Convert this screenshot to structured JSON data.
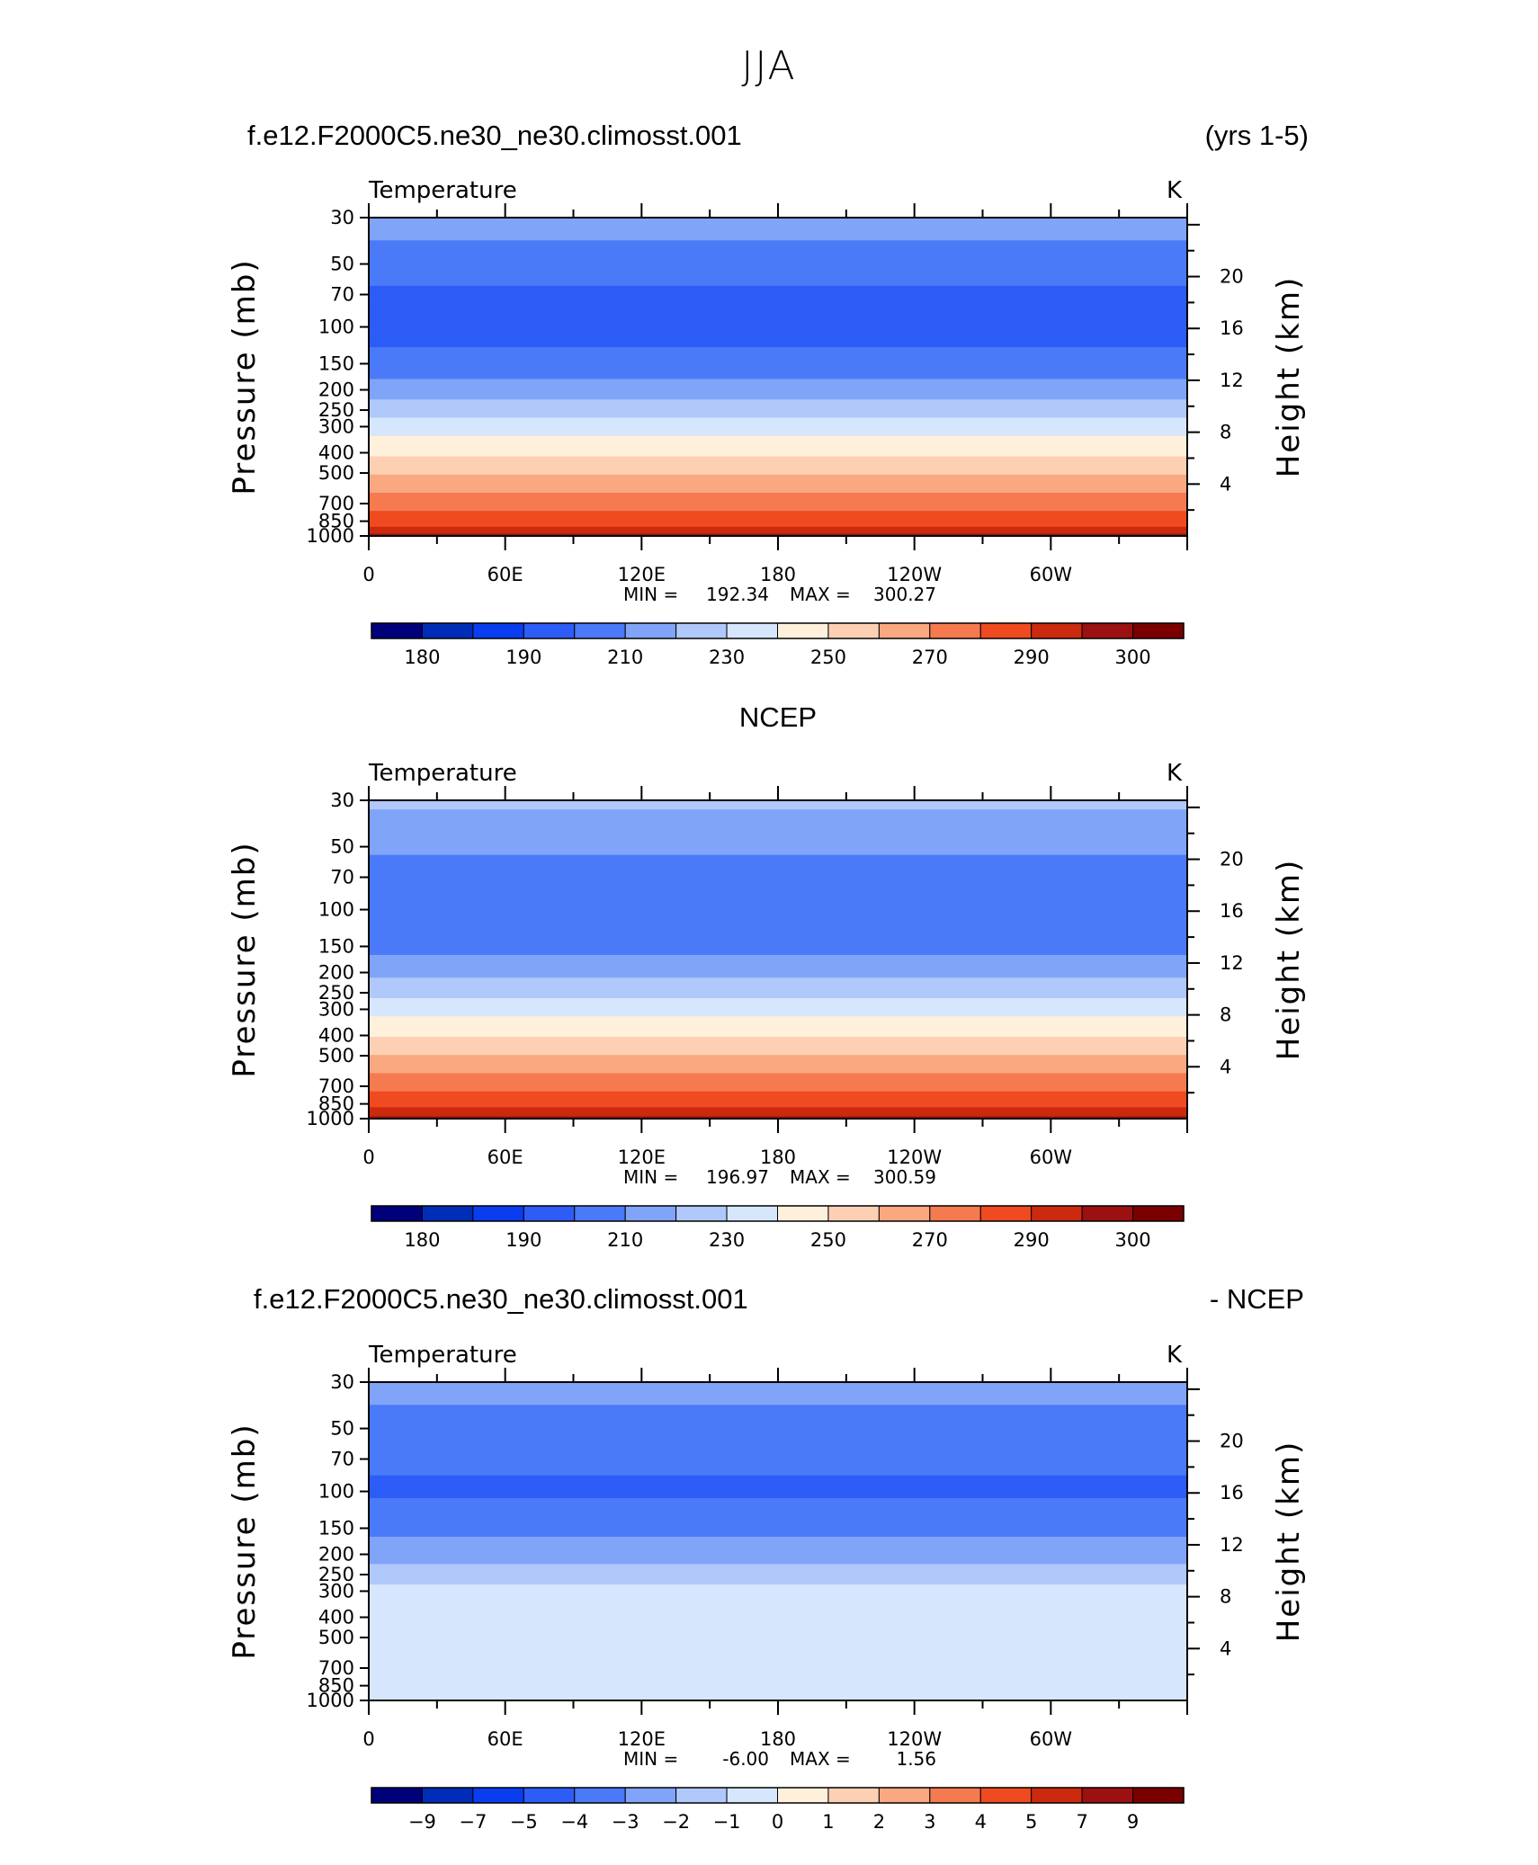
{
  "title": "JJA",
  "panels": [
    {
      "id": "model",
      "title_left": "f.e12.F2000C5.ne30_ne30.climosst.001",
      "title_center": "",
      "title_right": "(yrs 1-5)",
      "variable": "Temperature",
      "units": "K",
      "y_left_label": "Pressure (mb)",
      "y_right_label": "Height (km)",
      "min_label": "MIN =",
      "min_value": "192.34",
      "max_label": "MAX =",
      "max_value": "300.27"
    },
    {
      "id": "ncep",
      "title_left": "",
      "title_center": "NCEP",
      "title_right": "",
      "variable": "Temperature",
      "units": "K",
      "y_left_label": "Pressure (mb)",
      "y_right_label": "Height (km)",
      "min_label": "MIN =",
      "min_value": "196.97",
      "max_label": "MAX =",
      "max_value": "300.59"
    },
    {
      "id": "diff",
      "title_left": "f.e12.F2000C5.ne30_ne30.climosst.001",
      "title_center": "",
      "title_right": "- NCEP",
      "variable": "Temperature",
      "units": "K",
      "y_left_label": "Pressure (mb)",
      "y_right_label": "Height (km)",
      "min_label": "MIN =",
      "min_value": "-6.00",
      "max_label": "MAX =",
      "max_value": "1.56"
    }
  ],
  "chart_data": [
    {
      "type": "heatmap",
      "title": "Temperature",
      "units": "K",
      "xlabel": "",
      "ylabel": "Pressure (mb)",
      "y2label": "Height (km)",
      "x_ticks": [
        "0",
        "60E",
        "120E",
        "180",
        "120W",
        "60W"
      ],
      "y_ticks_pressure": [
        30,
        50,
        70,
        100,
        150,
        200,
        250,
        300,
        400,
        500,
        700,
        850,
        1000
      ],
      "y_ticks_height_km": [
        20,
        16,
        12,
        8,
        4
      ],
      "ylim_pressure": [
        1000,
        30
      ],
      "contour_levels": [
        180,
        185,
        190,
        200,
        210,
        220,
        230,
        240,
        250,
        260,
        270,
        280,
        290,
        295,
        300
      ],
      "colorbar_labels": [
        "180",
        "190",
        "210",
        "230",
        "250",
        "270",
        "290",
        "300"
      ],
      "colors": [
        "#00007a",
        "#002db8",
        "#0a3df0",
        "#2d5cf7",
        "#4a7af7",
        "#80a4f8",
        "#b0c8fa",
        "#d6e6fc",
        "#fff0dc",
        "#fdd0b4",
        "#f9a880",
        "#f57a50",
        "#ef4a20",
        "#cc2a0e",
        "#9b1010",
        "#7a0000"
      ],
      "profile": [
        {
          "p": 30,
          "value": 215
        },
        {
          "p": 50,
          "value": 205
        },
        {
          "p": 70,
          "value": 198
        },
        {
          "p": 100,
          "value": 196
        },
        {
          "p": 150,
          "value": 203
        },
        {
          "p": 200,
          "value": 215
        },
        {
          "p": 250,
          "value": 226
        },
        {
          "p": 300,
          "value": 235
        },
        {
          "p": 400,
          "value": 248
        },
        {
          "p": 500,
          "value": 259
        },
        {
          "p": 700,
          "value": 276
        },
        {
          "p": 850,
          "value": 286
        },
        {
          "p": 1000,
          "value": 297
        }
      ]
    },
    {
      "type": "heatmap",
      "title": "Temperature",
      "units": "K",
      "xlabel": "",
      "ylabel": "Pressure (mb)",
      "y2label": "Height (km)",
      "x_ticks": [
        "0",
        "60E",
        "120E",
        "180",
        "120W",
        "60W"
      ],
      "y_ticks_pressure": [
        30,
        50,
        70,
        100,
        150,
        200,
        250,
        300,
        400,
        500,
        700,
        850,
        1000
      ],
      "y_ticks_height_km": [
        20,
        16,
        12,
        8,
        4
      ],
      "ylim_pressure": [
        1000,
        30
      ],
      "contour_levels": [
        180,
        185,
        190,
        200,
        210,
        220,
        230,
        240,
        250,
        260,
        270,
        280,
        290,
        295,
        300
      ],
      "colorbar_labels": [
        "180",
        "190",
        "210",
        "230",
        "250",
        "270",
        "290",
        "300"
      ],
      "colors": [
        "#00007a",
        "#002db8",
        "#0a3df0",
        "#2d5cf7",
        "#4a7af7",
        "#80a4f8",
        "#b0c8fa",
        "#d6e6fc",
        "#fff0dc",
        "#fdd0b4",
        "#f9a880",
        "#f57a50",
        "#ef4a20",
        "#cc2a0e",
        "#9b1010",
        "#7a0000"
      ],
      "profile": [
        {
          "p": 30,
          "value": 222
        },
        {
          "p": 50,
          "value": 212
        },
        {
          "p": 70,
          "value": 205
        },
        {
          "p": 100,
          "value": 200
        },
        {
          "p": 150,
          "value": 206
        },
        {
          "p": 200,
          "value": 217
        },
        {
          "p": 250,
          "value": 227
        },
        {
          "p": 300,
          "value": 236
        },
        {
          "p": 400,
          "value": 249
        },
        {
          "p": 500,
          "value": 260
        },
        {
          "p": 700,
          "value": 277
        },
        {
          "p": 850,
          "value": 287
        },
        {
          "p": 1000,
          "value": 297
        }
      ]
    },
    {
      "type": "heatmap",
      "title": "Temperature",
      "units": "K",
      "xlabel": "",
      "ylabel": "Pressure (mb)",
      "y2label": "Height (km)",
      "x_ticks": [
        "0",
        "60E",
        "120E",
        "180",
        "120W",
        "60W"
      ],
      "y_ticks_pressure": [
        30,
        50,
        70,
        100,
        150,
        200,
        250,
        300,
        400,
        500,
        700,
        850,
        1000
      ],
      "y_ticks_height_km": [
        20,
        16,
        12,
        8,
        4
      ],
      "ylim_pressure": [
        1000,
        30
      ],
      "contour_levels": [
        -9,
        -7,
        -5,
        -4,
        -3,
        -2,
        -1,
        0,
        1,
        2,
        3,
        4,
        5,
        7,
        9
      ],
      "colorbar_labels": [
        "-9",
        "-7",
        "-5",
        "-4",
        "-3",
        "-2",
        "-1",
        "0",
        "1",
        "2",
        "3",
        "4",
        "5",
        "7",
        "9"
      ],
      "colors": [
        "#00007a",
        "#002db8",
        "#0a3df0",
        "#2d5cf7",
        "#4a7af7",
        "#80a4f8",
        "#b0c8fa",
        "#d6e6fc",
        "#fff0dc",
        "#fdd0b4",
        "#f9a880",
        "#f57a50",
        "#ef4a20",
        "#cc2a0e",
        "#9b1010",
        "#7a0000"
      ],
      "profile": [
        {
          "p": 30,
          "value": -2.5
        },
        {
          "p": 50,
          "value": -3.5
        },
        {
          "p": 70,
          "value": -3.8
        },
        {
          "p": 100,
          "value": -4.2
        },
        {
          "p": 150,
          "value": -3.2
        },
        {
          "p": 200,
          "value": -2.5
        },
        {
          "p": 250,
          "value": -1.5
        },
        {
          "p": 300,
          "value": -0.7
        },
        {
          "p": 400,
          "value": -0.5
        },
        {
          "p": 500,
          "value": -0.5
        },
        {
          "p": 700,
          "value": -0.5
        },
        {
          "p": 850,
          "value": -0.4
        },
        {
          "p": 1000,
          "value": -0.3
        }
      ]
    }
  ]
}
